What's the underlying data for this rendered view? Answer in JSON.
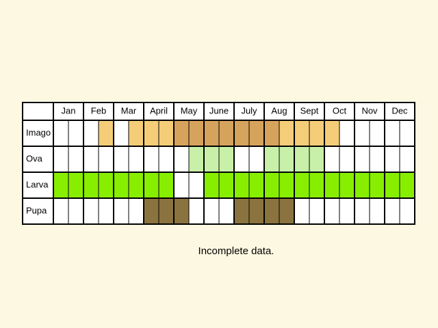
{
  "months": [
    "Jan",
    "Feb",
    "Mar",
    "April",
    "May",
    "June",
    "July",
    "Aug",
    "Sept",
    "Oct",
    "Nov",
    "Dec"
  ],
  "rows": [
    {
      "label": "Imago",
      "cells": [
        null,
        null,
        null,
        "#f5cd78",
        null,
        "#f5cd78",
        "#f5cd78",
        "#f5cd78",
        "#d6a35c",
        "#d6a35c",
        "#d6a35c",
        "#d6a35c",
        "#d6a35c",
        "#d6a35c",
        "#d6a35c",
        "#f5cd78",
        "#f5cd78",
        "#f5cd78",
        "#f5cd78",
        null,
        null,
        null,
        null,
        null
      ]
    },
    {
      "label": "Ova",
      "cells": [
        null,
        null,
        null,
        null,
        null,
        null,
        null,
        null,
        null,
        "#c8f0a8",
        "#c8f0a8",
        "#c8f0a8",
        null,
        null,
        "#c8f0a8",
        "#c8f0a8",
        "#c8f0a8",
        "#c8f0a8",
        null,
        null,
        null,
        null,
        null,
        null
      ]
    },
    {
      "label": "Larva",
      "cells": [
        "#88ee00",
        "#88ee00",
        "#88ee00",
        "#88ee00",
        "#88ee00",
        "#88ee00",
        "#88ee00",
        "#88ee00",
        null,
        null,
        "#88ee00",
        "#88ee00",
        "#88ee00",
        "#88ee00",
        "#88ee00",
        "#88ee00",
        "#88ee00",
        "#88ee00",
        "#88ee00",
        "#88ee00",
        "#88ee00",
        "#88ee00",
        "#88ee00",
        "#88ee00"
      ]
    },
    {
      "label": "Pupa",
      "cells": [
        null,
        null,
        null,
        null,
        null,
        null,
        "#8b7340",
        "#8b7340",
        "#8b7340",
        null,
        null,
        null,
        "#8b7340",
        "#8b7340",
        "#8b7340",
        "#8b7340",
        null,
        null,
        null,
        null,
        null,
        null,
        null,
        null
      ]
    }
  ],
  "caption": "Incomplete data."
}
